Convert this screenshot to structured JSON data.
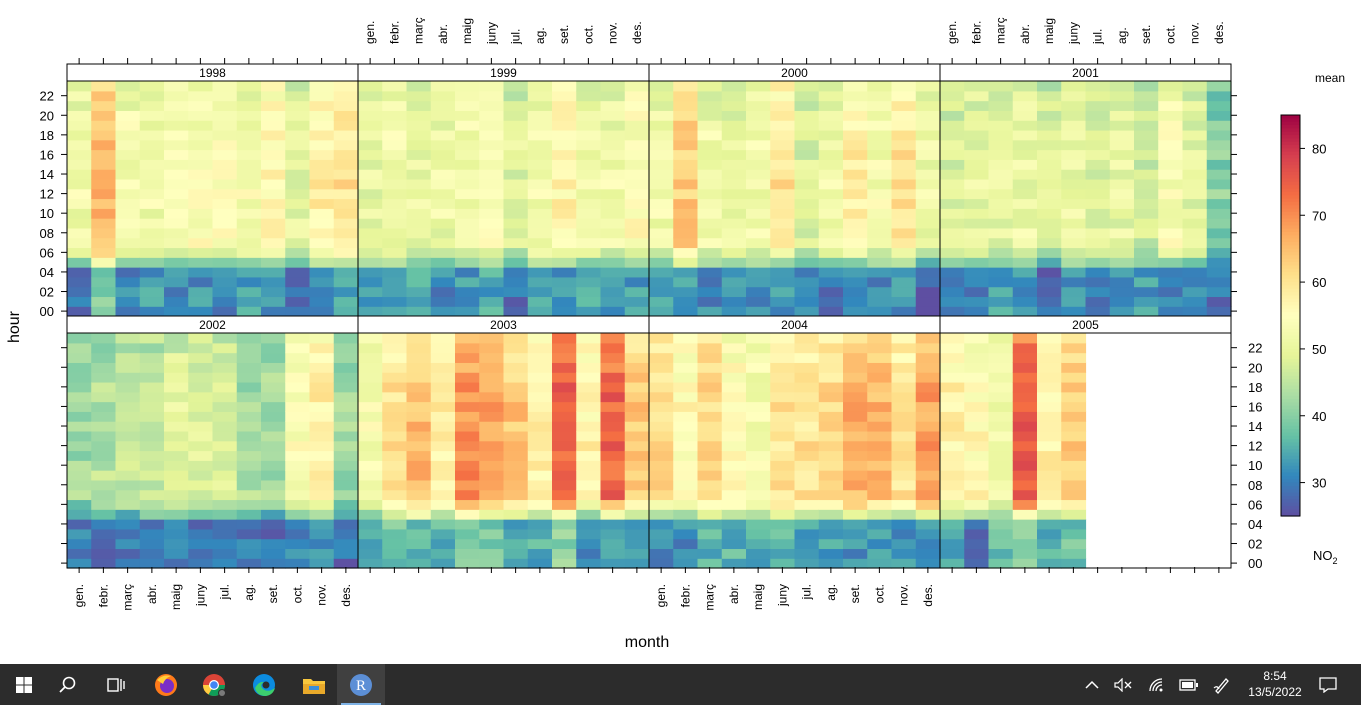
{
  "chart_data": {
    "type": "heatmap",
    "pollutant": "NO2",
    "xlabel": "month",
    "ylabel": "hour",
    "legend_title": "mean",
    "legend_label": "NO2",
    "legend_ticks": [
      30,
      40,
      50,
      60,
      70,
      80
    ],
    "color_range": [
      25,
      85
    ],
    "months": [
      "gen.",
      "febr.",
      "març",
      "abr.",
      "maig",
      "juny",
      "jul.",
      "ag.",
      "set.",
      "oct.",
      "nov.",
      "des."
    ],
    "hour_ticks": [
      "00",
      "02",
      "04",
      "06",
      "08",
      "10",
      "12",
      "14",
      "16",
      "18",
      "20",
      "22"
    ],
    "panels": [
      {
        "year": "1998",
        "night": [
          30,
          40,
          31,
          33,
          32,
          32,
          31,
          33,
          32,
          28,
          33,
          34
        ],
        "day": [
          52,
          66,
          53,
          52,
          53,
          54,
          54,
          53,
          57,
          50,
          58,
          60
        ]
      },
      {
        "year": "1999",
        "night": [
          32,
          34,
          36,
          31,
          33,
          34,
          28,
          33,
          33,
          34,
          32,
          33
        ],
        "day": [
          50,
          52,
          50,
          51,
          52,
          55,
          49,
          53,
          57,
          51,
          52,
          55
        ]
      },
      {
        "year": "2000",
        "night": [
          34,
          33,
          31,
          33,
          31,
          32,
          31,
          30,
          30,
          31,
          32,
          27
        ],
        "day": [
          52,
          63,
          52,
          50,
          52,
          60,
          48,
          52,
          58,
          53,
          60,
          51
        ]
      },
      {
        "year": "2001",
        "night": [
          31,
          31,
          34,
          32,
          27,
          33,
          29,
          33,
          33,
          31,
          33,
          29
        ],
        "day": [
          48,
          50,
          50,
          51,
          48,
          50,
          49,
          50,
          47,
          54,
          49,
          40
        ]
      },
      {
        "year": "2002",
        "night": [
          30,
          28,
          29,
          30,
          30,
          29,
          28,
          29,
          28,
          31,
          31,
          28
        ],
        "day": [
          42,
          44,
          46,
          46,
          49,
          49,
          48,
          43,
          43,
          54,
          58,
          42
        ]
      },
      {
        "year": "2003",
        "night": [
          33,
          38,
          37,
          36,
          39,
          39,
          33,
          35,
          40,
          32,
          36,
          34
        ],
        "day": [
          53,
          60,
          65,
          58,
          70,
          68,
          64,
          57,
          75,
          57,
          74,
          64
        ]
      },
      {
        "year": "2004",
        "night": [
          32,
          32,
          35,
          36,
          35,
          36,
          35,
          33,
          32,
          34,
          32,
          33
        ],
        "day": [
          62,
          56,
          62,
          56,
          53,
          60,
          60,
          62,
          66,
          66,
          60,
          68
        ]
      },
      {
        "year": "2005",
        "night": [
          34,
          30,
          37,
          40,
          35,
          38,
          null,
          null,
          null,
          null,
          null,
          null
        ],
        "day": [
          58,
          56,
          52,
          75,
          58,
          64,
          null,
          null,
          null,
          null,
          null,
          null
        ]
      }
    ]
  },
  "taskbar": {
    "clock_time": "8:54",
    "clock_date": "13/5/2022",
    "apps": [
      {
        "name": "start-icon"
      },
      {
        "name": "search-icon"
      },
      {
        "name": "task-view-icon"
      },
      {
        "name": "firefox-icon"
      },
      {
        "name": "chrome-icon"
      },
      {
        "name": "edge-icon"
      },
      {
        "name": "file-explorer-icon"
      },
      {
        "name": "r-gui-icon",
        "label": "R"
      }
    ],
    "tray_icons": [
      "chevron-up-icon",
      "volume-muted-icon",
      "wifi-icon",
      "battery-icon",
      "pen-icon",
      "notification-icon"
    ]
  }
}
